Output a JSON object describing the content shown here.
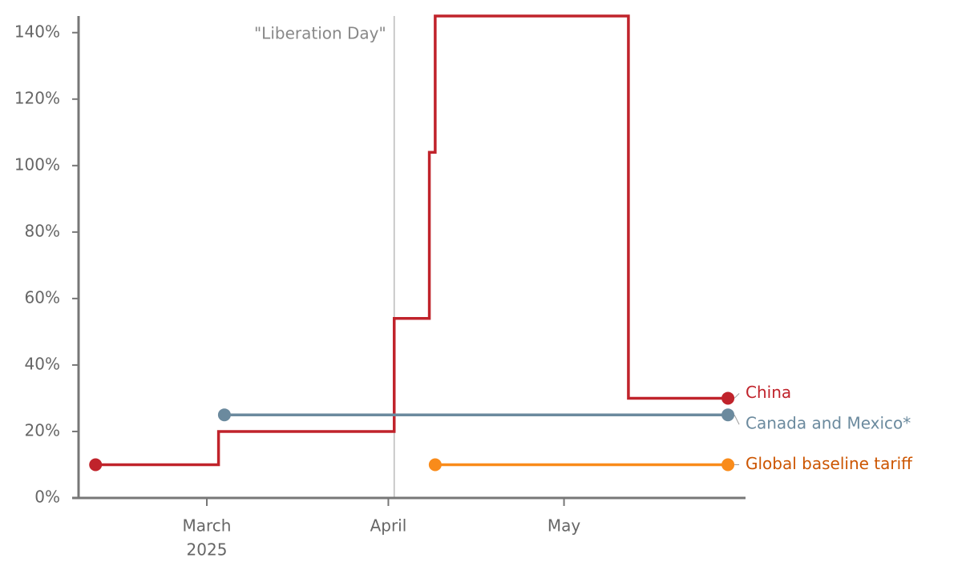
{
  "chart_data": {
    "type": "step-line",
    "xlim": [
      37,
      152
    ],
    "ylim": [
      0,
      145
    ],
    "xticks": [
      {
        "value": 60,
        "label": "March",
        "sublabel": "2025"
      },
      {
        "value": 91,
        "label": "April"
      },
      {
        "value": 121,
        "label": "May"
      }
    ],
    "yticks": [
      {
        "value": 0,
        "label": "0%"
      },
      {
        "value": 20,
        "label": "20%"
      },
      {
        "value": 40,
        "label": "40%"
      },
      {
        "value": 60,
        "label": "60%"
      },
      {
        "value": 80,
        "label": "80%"
      },
      {
        "value": 100,
        "label": "100%"
      },
      {
        "value": 120,
        "label": "120%"
      },
      {
        "value": 140,
        "label": "140%"
      }
    ],
    "annotations": [
      {
        "text": "\"Liberation Day\"",
        "x": 92
      }
    ],
    "series": [
      {
        "name": "China",
        "color": "#c0232b",
        "label_color": "#c0232b",
        "x": [
          41,
          62,
          92,
          98,
          99,
          132,
          149
        ],
        "values": [
          10,
          20,
          54,
          104,
          145,
          30,
          30
        ]
      },
      {
        "name": "Canada and Mexico*",
        "color": "#6b8a9e",
        "label_color": "#6b8a9e",
        "x": [
          63,
          149
        ],
        "values": [
          25,
          25
        ]
      },
      {
        "name": "Global baseline tariff",
        "color": "#f98b1a",
        "label_color": "#cc5500",
        "x": [
          99,
          149
        ],
        "values": [
          10,
          10
        ]
      }
    ]
  }
}
